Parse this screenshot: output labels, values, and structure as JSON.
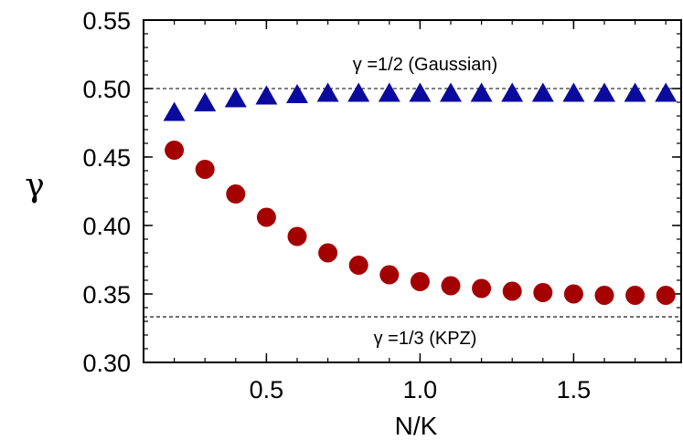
{
  "chart_data": {
    "type": "scatter",
    "xlabel": "N/K",
    "ylabel": "γ",
    "xlim": [
      0.1,
      1.85
    ],
    "ylim": [
      0.3,
      0.55
    ],
    "xticks": [
      0.5,
      1.0,
      1.5
    ],
    "xtick_labels": [
      "0.5",
      "1.0",
      "1.5"
    ],
    "yticks": [
      0.3,
      0.35,
      0.4,
      0.45,
      0.5,
      0.55
    ],
    "ytick_labels": [
      "0.30",
      "0.35",
      "0.40",
      "0.45",
      "0.50",
      "0.55"
    ],
    "grid": false,
    "reference_lines": [
      {
        "y": 0.5,
        "label": "γ =1/2 (Gaussian)",
        "style": "dashed"
      },
      {
        "y": 0.3333,
        "label": "γ =1/3 (KPZ)",
        "style": "dashed"
      }
    ],
    "series": [
      {
        "marker": "triangle",
        "color": "#0a0a9e",
        "x": [
          0.2,
          0.3,
          0.4,
          0.5,
          0.6,
          0.7,
          0.8,
          0.9,
          1.0,
          1.1,
          1.2,
          1.3,
          1.4,
          1.5,
          1.6,
          1.7,
          1.8
        ],
        "y": [
          0.483,
          0.49,
          0.493,
          0.495,
          0.496,
          0.497,
          0.497,
          0.497,
          0.497,
          0.497,
          0.497,
          0.497,
          0.497,
          0.497,
          0.497,
          0.497,
          0.497
        ]
      },
      {
        "marker": "circle",
        "color": "#a40000",
        "x": [
          0.2,
          0.3,
          0.4,
          0.5,
          0.6,
          0.7,
          0.8,
          0.9,
          1.0,
          1.1,
          1.2,
          1.3,
          1.4,
          1.5,
          1.6,
          1.7,
          1.8
        ],
        "y": [
          0.455,
          0.441,
          0.423,
          0.406,
          0.392,
          0.38,
          0.371,
          0.364,
          0.359,
          0.356,
          0.354,
          0.352,
          0.351,
          0.35,
          0.349,
          0.349,
          0.349
        ]
      }
    ]
  }
}
